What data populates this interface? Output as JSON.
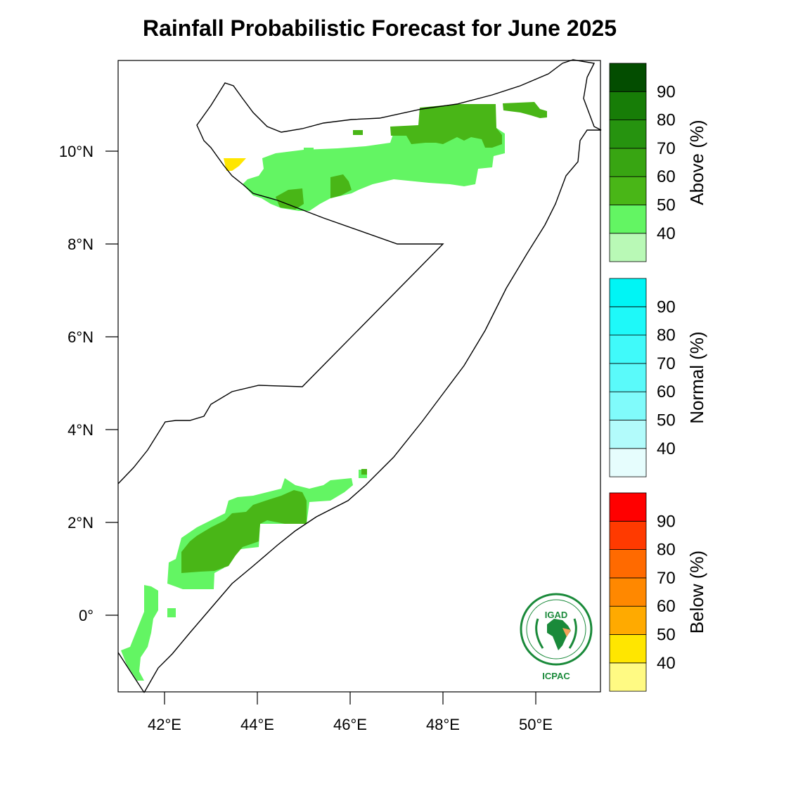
{
  "title": "Rainfall Probabilistic Forecast for June 2025",
  "axes": {
    "lat_labels": [
      "10°N",
      "8°N",
      "6°N",
      "4°N",
      "2°N",
      "0°"
    ],
    "lon_labels": [
      "42°E",
      "44°E",
      "46°E",
      "48°E",
      "50°E"
    ],
    "lat_values": [
      10,
      8,
      6,
      4,
      2,
      0
    ],
    "lon_values": [
      42,
      44,
      46,
      48,
      50
    ],
    "lon_range": [
      41.0,
      51.4
    ],
    "lat_range": [
      -1.7,
      11.85
    ]
  },
  "legends": [
    {
      "title": "Above (%)",
      "labels": [
        "40",
        "50",
        "60",
        "70",
        "80",
        "90"
      ],
      "colors": [
        "#b9f9b6",
        "#63f563",
        "#49b617",
        "#38a512",
        "#26930f",
        "#177d07",
        "#034d00"
      ]
    },
    {
      "title": "Normal (%)",
      "labels": [
        "40",
        "50",
        "60",
        "70",
        "80",
        "90"
      ],
      "colors": [
        "#e6fdfd",
        "#b2fbfb",
        "#80fbfb",
        "#5afafa",
        "#40fafa",
        "#1ef9f9",
        "#00f5f5"
      ]
    },
    {
      "title": "Below (%)",
      "labels": [
        "40",
        "50",
        "60",
        "70",
        "80",
        "90"
      ],
      "colors": [
        "#fffa83",
        "#ffe600",
        "#ffaa00",
        "#ff8800",
        "#ff6a00",
        "#ff3a00",
        "#ff0000"
      ]
    }
  ],
  "logo": {
    "top_text": "IGAD",
    "bottom_text": "ICPAC",
    "ring_text": "INTERGOVERNMENTAL AUTHORITY ON DEVELOPMENT"
  }
}
